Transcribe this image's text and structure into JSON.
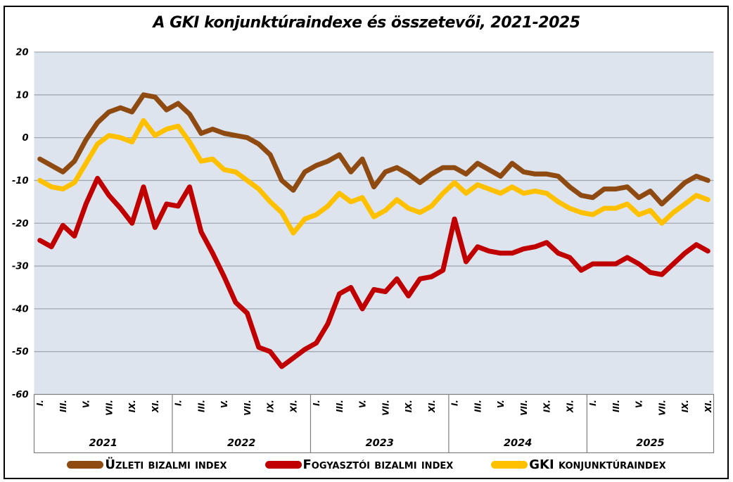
{
  "title": "A GKI konjunktúraindexe és összetevői, 2021-2025",
  "colors": {
    "plot_bg": "#dde4ee",
    "gridline": "#a3a9b2",
    "axis_line": "#7f7f7f",
    "frame": "#000000",
    "business_line": "#8e4a10",
    "consumer_line": "#c00000",
    "gki_line": "#ffc000"
  },
  "chart_data": {
    "type": "line",
    "title": "A GKI konjunktúraindexe és összetevői, 2021-2025",
    "x_axis": {
      "years": [
        "2021",
        "2022",
        "2023",
        "2024",
        "2025"
      ],
      "months_per_year": 12,
      "last_year_month_count": 11,
      "tick_labels": [
        "I.",
        "III.",
        "V.",
        "VII.",
        "IX.",
        "XI."
      ],
      "tick_month_offsets": [
        0,
        2,
        4,
        6,
        8,
        10
      ]
    },
    "ylim": [
      -60,
      20
    ],
    "y_ticks": [
      20,
      10,
      0,
      -10,
      -20,
      -30,
      -40,
      -50,
      -60
    ],
    "grid": "horizontal",
    "legend_position": "bottom",
    "series": [
      {
        "name": "Üzleti bizalmi index",
        "color": "#8e4a10",
        "values": [
          -5,
          -6.5,
          -8,
          -5.5,
          -0.5,
          3.5,
          6,
          7,
          6,
          10,
          9.5,
          6.5,
          8,
          5.5,
          1,
          2,
          1,
          0.5,
          0,
          -1.5,
          -4,
          -10,
          -12.3,
          -8,
          -6.5,
          -5.5,
          -4,
          -8,
          -5,
          -11.5,
          -8,
          -7,
          -8.5,
          -10.5,
          -8.5,
          -7,
          -7,
          -8.5,
          -6,
          -7.5,
          -9,
          -6,
          -8,
          -8.5,
          -8.5,
          -9,
          -11.5,
          -13.5,
          -14,
          -12,
          -12,
          -11.5,
          -14,
          -12.5,
          -15.5,
          -13,
          -10.5,
          -9,
          -10
        ]
      },
      {
        "name": "Fogyasztói bizalmi index",
        "color": "#c00000",
        "values": [
          -24,
          -25.5,
          -20.5,
          -23,
          -15.5,
          -9.5,
          -13.5,
          -16.5,
          -20,
          -11.5,
          -21,
          -15.5,
          -16,
          -11.5,
          -22,
          -27,
          -32.5,
          -38.5,
          -41,
          -49,
          -50,
          -53.5,
          -51.5,
          -49.5,
          -48,
          -43.5,
          -36.5,
          -35,
          -40,
          -35.5,
          -36,
          -33,
          -37,
          -33,
          -32.5,
          -31,
          -19,
          -29,
          -25.5,
          -26.5,
          -27,
          -27,
          -26,
          -25.5,
          -24.5,
          -27,
          -28,
          -31,
          -29.5,
          -29.5,
          -29.5,
          -28,
          -29.5,
          -31.5,
          -32,
          -29.5,
          -27,
          -25,
          -26.5
        ]
      },
      {
        "name": "GKI konjunktúraindex",
        "color": "#ffc000",
        "values": [
          -10,
          -11.5,
          -12,
          -10.5,
          -6,
          -1.5,
          0.5,
          0,
          -1,
          4,
          0.5,
          2,
          2.7,
          -1,
          -5.5,
          -5,
          -7.5,
          -8,
          -10,
          -12,
          -15,
          -17.5,
          -22.3,
          -19,
          -18,
          -16,
          -13,
          -15,
          -14,
          -18.5,
          -17,
          -14.5,
          -16.5,
          -17.5,
          -16,
          -13,
          -10.5,
          -13,
          -11,
          -12,
          -13,
          -11.5,
          -13,
          -12.5,
          -13,
          -15,
          -16.5,
          -17.5,
          -18,
          -16.5,
          -16.5,
          -15.5,
          -18,
          -17,
          -20,
          -17.5,
          -15.5,
          -13.5,
          -14.5
        ]
      }
    ]
  }
}
